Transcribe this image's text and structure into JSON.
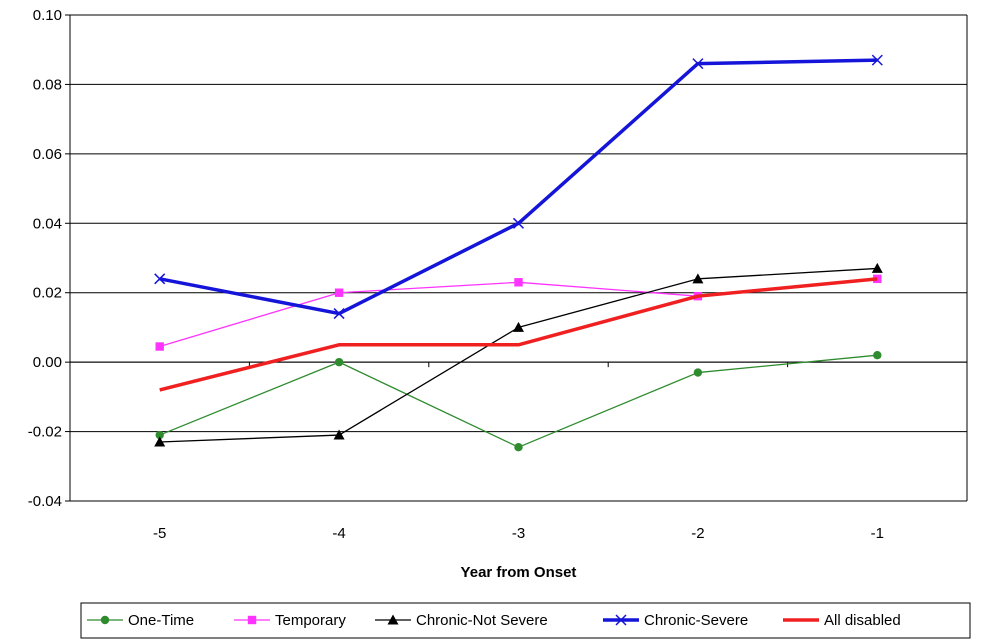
{
  "chart_data": {
    "type": "line",
    "title": "",
    "xlabel": "Year from Onset",
    "ylabel": "",
    "categories": [
      "-5",
      "-4",
      "-3",
      "-2",
      "-1"
    ],
    "ylim": [
      -0.04,
      0.1
    ],
    "yticks": [
      "-0.04",
      "-0.02",
      "0.00",
      "0.02",
      "0.04",
      "0.06",
      "0.08",
      "0.10"
    ],
    "grid": "horizontal",
    "legend_position": "bottom",
    "series": [
      {
        "name": "One-Time",
        "values": [
          -0.021,
          0.0,
          -0.0245,
          -0.003,
          0.002
        ],
        "color": "#2E8B2E",
        "marker": "circle",
        "thick": false
      },
      {
        "name": "Temporary",
        "values": [
          0.0045,
          0.02,
          0.023,
          0.019,
          0.024
        ],
        "color": "#FF33FF",
        "marker": "square",
        "thick": false
      },
      {
        "name": "Chronic-Not Severe",
        "values": [
          -0.023,
          -0.021,
          0.01,
          0.024,
          0.027
        ],
        "color": "#000000",
        "marker": "triangle",
        "thick": false
      },
      {
        "name": "Chronic-Severe",
        "values": [
          0.024,
          0.014,
          0.04,
          0.086,
          0.087
        ],
        "color": "#1515D9",
        "marker": "x",
        "thick": true
      },
      {
        "name": "All disabled",
        "values": [
          -0.008,
          0.005,
          0.005,
          0.019,
          0.024
        ],
        "color": "#F02020",
        "marker": "none",
        "thick": true
      }
    ]
  }
}
